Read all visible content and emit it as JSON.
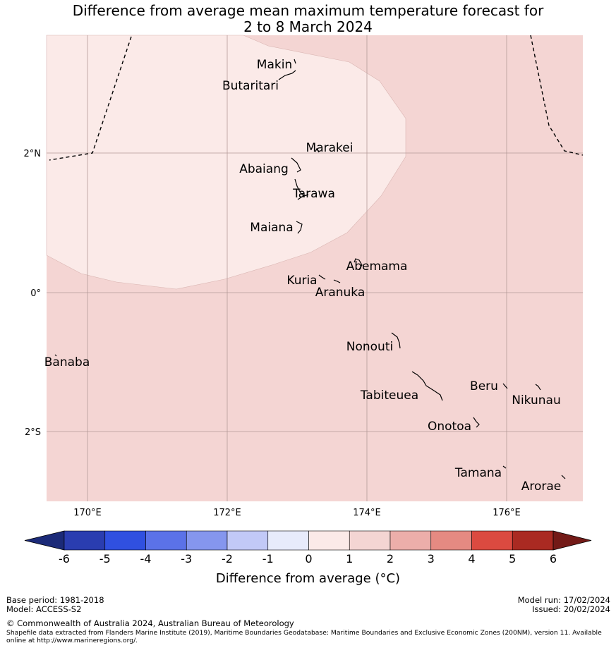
{
  "title": {
    "line1": "Difference from average mean maximum temperature forecast for",
    "line2": "2 to 8 March 2024"
  },
  "map": {
    "latitude_labels": [
      "2°N",
      "0°",
      "2°S"
    ],
    "longitude_labels": [
      "170°E",
      "172°E",
      "174°E",
      "176°E"
    ],
    "places": [
      "Makin",
      "Butaritari",
      "Marakei",
      "Abaiang",
      "Tarawa",
      "Maiana",
      "Abemama",
      "Kuria",
      "Aranuka",
      "Banaba",
      "Nonouti",
      "Beru",
      "Tabiteuea",
      "Nikunau",
      "Onotoa",
      "Tamana",
      "Arorae"
    ],
    "colors": {
      "anomaly_0_to_1": "#fbeae8",
      "anomaly_1_to_2": "#f4d5d3",
      "grid": "#b59a98"
    }
  },
  "colorbar": {
    "ticks": [
      "-6",
      "-5",
      "-4",
      "-3",
      "-2",
      "-1",
      "0",
      "1",
      "2",
      "3",
      "4",
      "5",
      "6"
    ],
    "colors": [
      "#1b2a78",
      "#2a3db0",
      "#3050e0",
      "#5b72e8",
      "#8596ee",
      "#c2c9f7",
      "#e7ebfb",
      "#fbeae8",
      "#f4d5d3",
      "#ecaeaa",
      "#e58a82",
      "#db4a40",
      "#aa2a22",
      "#731a17"
    ],
    "label": "Difference from average ($^\\circ$C)",
    "label_display": "Difference from average (°C)"
  },
  "footer": {
    "base_period": "Base period: 1981-2018",
    "model": "Model: ACCESS-S2",
    "model_run": "Model run: 17/02/2024",
    "issued": "Issued: 20/02/2024",
    "copyright": "© Commonwealth of Australia 2024, Australian Bureau of Meteorology",
    "shapefile": "Shapefile data extracted from Flanders Marine Institute (2019), Maritime Boundaries Geodatabase: Maritime Boundaries and Exclusive Economic Zones (200NM), version 11. Available online at http://www.marineregions.org/."
  }
}
